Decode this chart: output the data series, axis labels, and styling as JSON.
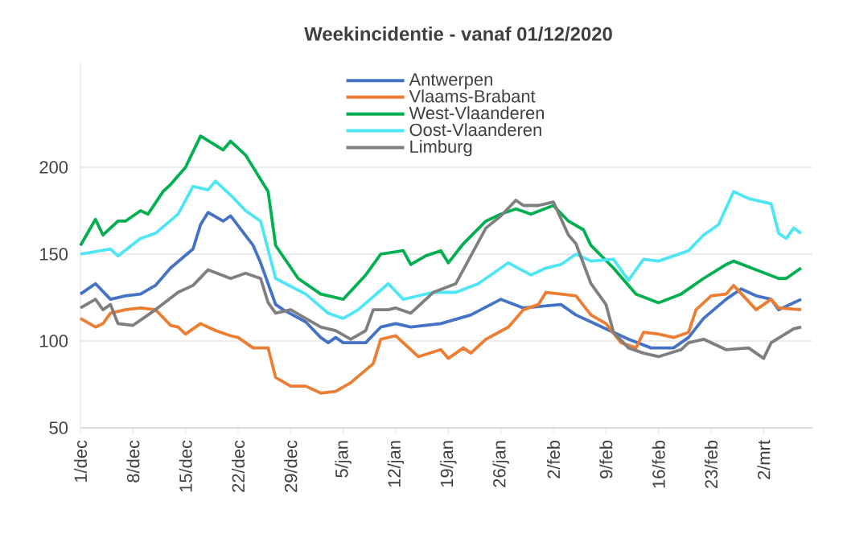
{
  "chart_data": {
    "type": "line",
    "title": "Weekincidentie  - vanaf 01/12/2020",
    "xlim": [
      "2020-12-01",
      "2021-03-08T12:00"
    ],
    "ylim": [
      50,
      260
    ],
    "xticks": [
      {
        "value": "2020-12-01",
        "label": "1/dec"
      },
      {
        "value": "2020-12-08",
        "label": "8/dec"
      },
      {
        "value": "2020-12-15",
        "label": "15/dec"
      },
      {
        "value": "2020-12-22",
        "label": "22/dec"
      },
      {
        "value": "2020-12-29",
        "label": "29/dec"
      },
      {
        "value": "2021-01-05",
        "label": "5/jan"
      },
      {
        "value": "2021-01-12",
        "label": "12/jan"
      },
      {
        "value": "2021-01-19",
        "label": "19/jan"
      },
      {
        "value": "2021-01-26",
        "label": "26/jan"
      },
      {
        "value": "2021-02-02",
        "label": "2/feb"
      },
      {
        "value": "2021-02-09",
        "label": "9/feb"
      },
      {
        "value": "2021-02-16",
        "label": "16/feb"
      },
      {
        "value": "2021-02-23",
        "label": "23/feb"
      },
      {
        "value": "2021-03-02",
        "label": "2/mrt"
      }
    ],
    "yticks": [
      50,
      100,
      150,
      200
    ],
    "grid": "y",
    "legend": "top",
    "marker": "none",
    "line_style": "solid",
    "series": [
      {
        "name": "Antwerpen",
        "color": "#4472c4",
        "x": [
          "2020-12-01",
          "2020-12-03",
          "2020-12-05",
          "2020-12-07",
          "2020-12-09",
          "2020-12-11",
          "2020-12-13",
          "2020-12-16",
          "2020-12-17",
          "2020-12-18",
          "2020-12-20",
          "2020-12-21",
          "2020-12-24",
          "2020-12-25",
          "2020-12-27",
          "2020-12-28",
          "2020-12-31",
          "2021-01-02",
          "2021-01-03",
          "2021-01-04",
          "2021-01-05",
          "2021-01-08",
          "2021-01-10",
          "2021-01-12",
          "2021-01-14",
          "2021-01-18",
          "2021-01-22",
          "2021-01-26",
          "2021-01-29",
          "2021-02-03",
          "2021-02-05",
          "2021-02-07",
          "2021-02-10",
          "2021-02-12",
          "2021-02-15",
          "2021-02-18",
          "2021-02-20",
          "2021-02-22",
          "2021-02-25",
          "2021-02-27",
          "2021-03-01",
          "2021-03-03",
          "2021-03-04",
          "2021-03-06",
          "2021-03-07"
        ],
        "values": [
          127,
          133,
          124,
          126,
          127,
          132,
          142,
          153,
          167,
          174,
          169,
          172,
          155,
          145,
          121,
          118,
          111,
          102,
          99,
          102,
          99,
          99,
          108,
          110,
          108,
          110,
          115,
          124,
          119,
          121,
          115,
          111,
          105,
          101,
          96,
          96,
          102,
          113,
          124,
          130,
          126,
          124,
          118,
          122,
          124
        ]
      },
      {
        "name": "Vlaams-Brabant",
        "color": "#ed7d31",
        "x": [
          "2020-12-01",
          "2020-12-03",
          "2020-12-04",
          "2020-12-05",
          "2020-12-07",
          "2020-12-09",
          "2020-12-11",
          "2020-12-13",
          "2020-12-14",
          "2020-12-15",
          "2020-12-17",
          "2020-12-19",
          "2020-12-21",
          "2020-12-22",
          "2020-12-24",
          "2020-12-26",
          "2020-12-27",
          "2020-12-29",
          "2020-12-31",
          "2021-01-02",
          "2021-01-04",
          "2021-01-06",
          "2021-01-09",
          "2021-01-10",
          "2021-01-12",
          "2021-01-15",
          "2021-01-18",
          "2021-01-19",
          "2021-01-21",
          "2021-01-22",
          "2021-01-24",
          "2021-01-27",
          "2021-01-29",
          "2021-01-31",
          "2021-02-01",
          "2021-02-03",
          "2021-02-05",
          "2021-02-07",
          "2021-02-09",
          "2021-02-11",
          "2021-02-13",
          "2021-02-14",
          "2021-02-16",
          "2021-02-18",
          "2021-02-20",
          "2021-02-21",
          "2021-02-23",
          "2021-02-25",
          "2021-02-26",
          "2021-03-01",
          "2021-03-03",
          "2021-03-04",
          "2021-03-07"
        ],
        "values": [
          113,
          108,
          110,
          116,
          118,
          119,
          118,
          109,
          108,
          104,
          110,
          106,
          103,
          102,
          96,
          96,
          79,
          74,
          74,
          70,
          71,
          76,
          87,
          101,
          103,
          91,
          95,
          90,
          96,
          93,
          101,
          108,
          118,
          121,
          128,
          127,
          126,
          115,
          110,
          99,
          96,
          105,
          104,
          102,
          105,
          118,
          126,
          127,
          132,
          118,
          124,
          119,
          118
        ]
      },
      {
        "name": "West-Vlaanderen",
        "color": "#00b050",
        "x": [
          "2020-12-01",
          "2020-12-03",
          "2020-12-04",
          "2020-12-06",
          "2020-12-07",
          "2020-12-09",
          "2020-12-10",
          "2020-12-12",
          "2020-12-13",
          "2020-12-15",
          "2020-12-17",
          "2020-12-20",
          "2020-12-21",
          "2020-12-23",
          "2020-12-26",
          "2020-12-27",
          "2020-12-30",
          "2021-01-02",
          "2021-01-05",
          "2021-01-08",
          "2021-01-10",
          "2021-01-13",
          "2021-01-14",
          "2021-01-16",
          "2021-01-18",
          "2021-01-19",
          "2021-01-21",
          "2021-01-24",
          "2021-01-26",
          "2021-01-28",
          "2021-01-30",
          "2021-02-02",
          "2021-02-04",
          "2021-02-06",
          "2021-02-07",
          "2021-02-10",
          "2021-02-13",
          "2021-02-16",
          "2021-02-19",
          "2021-02-22",
          "2021-02-25",
          "2021-02-26",
          "2021-03-01",
          "2021-03-04",
          "2021-03-05",
          "2021-03-07"
        ],
        "values": [
          155,
          170,
          161,
          169,
          169,
          175,
          173,
          186,
          190,
          200,
          218,
          210,
          215,
          207,
          186,
          155,
          136,
          127,
          124,
          138,
          150,
          152,
          144,
          149,
          152,
          145,
          156,
          169,
          173,
          176,
          173,
          178,
          169,
          164,
          155,
          142,
          127,
          122,
          127,
          136,
          144,
          146,
          141,
          136,
          136,
          142
        ]
      },
      {
        "name": "Oost-Vlaanderen",
        "color": "#4ee6f5",
        "x": [
          "2020-12-01",
          "2020-12-05",
          "2020-12-06",
          "2020-12-09",
          "2020-12-11",
          "2020-12-14",
          "2020-12-16",
          "2020-12-18",
          "2020-12-19",
          "2020-12-21",
          "2020-12-23",
          "2020-12-25",
          "2020-12-27",
          "2020-12-31",
          "2021-01-03",
          "2021-01-05",
          "2021-01-07",
          "2021-01-11",
          "2021-01-13",
          "2021-01-17",
          "2021-01-20",
          "2021-01-23",
          "2021-01-26",
          "2021-01-27",
          "2021-01-30",
          "2021-02-01",
          "2021-02-03",
          "2021-02-05",
          "2021-02-07",
          "2021-02-10",
          "2021-02-12",
          "2021-02-14",
          "2021-02-16",
          "2021-02-20",
          "2021-02-22",
          "2021-02-24",
          "2021-02-26",
          "2021-02-28",
          "2021-03-03",
          "2021-03-04",
          "2021-03-05",
          "2021-03-06",
          "2021-03-07"
        ],
        "values": [
          150,
          153,
          149,
          159,
          162,
          173,
          189,
          187,
          192,
          184,
          175,
          169,
          136,
          127,
          116,
          113,
          118,
          133,
          124,
          128,
          128,
          133,
          142,
          145,
          138,
          142,
          144,
          150,
          146,
          147,
          135,
          147,
          146,
          152,
          161,
          167,
          186,
          182,
          179,
          162,
          159,
          165,
          162
        ]
      },
      {
        "name": "Limburg",
        "color": "#7f7f7f",
        "x": [
          "2020-12-01",
          "2020-12-03",
          "2020-12-04",
          "2020-12-05",
          "2020-12-06",
          "2020-12-08",
          "2020-12-10",
          "2020-12-11",
          "2020-12-14",
          "2020-12-16",
          "2020-12-18",
          "2020-12-21",
          "2020-12-23",
          "2020-12-25",
          "2020-12-26",
          "2020-12-27",
          "2020-12-29",
          "2020-12-31",
          "2021-01-02",
          "2021-01-04",
          "2021-01-06",
          "2021-01-08",
          "2021-01-09",
          "2021-01-11",
          "2021-01-12",
          "2021-01-14",
          "2021-01-17",
          "2021-01-20",
          "2021-01-22",
          "2021-01-24",
          "2021-01-26",
          "2021-01-28",
          "2021-01-29",
          "2021-01-31",
          "2021-02-02",
          "2021-02-04",
          "2021-02-05",
          "2021-02-07",
          "2021-02-09",
          "2021-02-10",
          "2021-02-12",
          "2021-02-14",
          "2021-02-16",
          "2021-02-19",
          "2021-02-20",
          "2021-02-22",
          "2021-02-25",
          "2021-02-28",
          "2021-03-02",
          "2021-03-03",
          "2021-03-06",
          "2021-03-07"
        ],
        "values": [
          119,
          124,
          118,
          121,
          110,
          109,
          115,
          118,
          128,
          132,
          141,
          136,
          139,
          136,
          122,
          116,
          118,
          113,
          108,
          106,
          101,
          106,
          118,
          118,
          119,
          116,
          128,
          133,
          149,
          165,
          172,
          181,
          178,
          178,
          180,
          161,
          156,
          133,
          121,
          105,
          96,
          93,
          91,
          95,
          99,
          101,
          95,
          96,
          90,
          99,
          107,
          108
        ]
      }
    ]
  }
}
